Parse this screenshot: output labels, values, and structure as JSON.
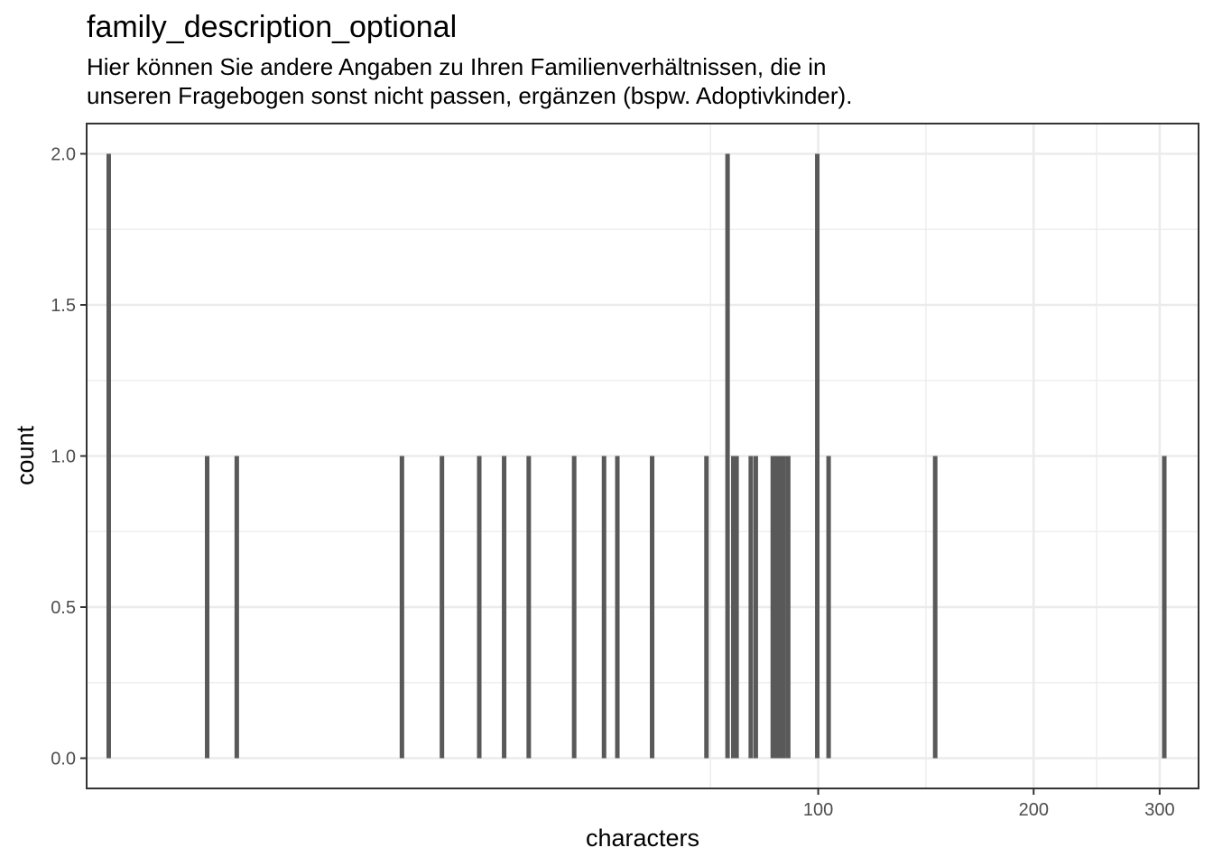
{
  "chart_data": {
    "type": "bar",
    "title": "family_description_optional",
    "subtitle": [
      "Hier können Sie andere Angaben zu Ihren Familienverhältnissen, die in",
      "unseren Fragebogen sonst nicht passen, ergänzen (bspw. Adoptivkinder)."
    ],
    "xlabel": "characters",
    "ylabel": "count",
    "x_scale": "log10",
    "x_range": [
      9.5,
      340
    ],
    "ylim": [
      -0.1,
      2.1
    ],
    "x_ticks": [
      {
        "value": 100,
        "label": "100"
      },
      {
        "value": 200,
        "label": "200"
      },
      {
        "value": 300,
        "label": "300"
      }
    ],
    "y_ticks": [
      {
        "value": 0,
        "label": "0.0"
      },
      {
        "value": 0.5,
        "label": "0.5"
      },
      {
        "value": 1,
        "label": "1.0"
      },
      {
        "value": 1.5,
        "label": "1.5"
      },
      {
        "value": 2,
        "label": "2.0"
      }
    ],
    "grid": true,
    "bar_color": "#595959",
    "points": [
      {
        "x": 10.2,
        "count": 2
      },
      {
        "x": 14.0,
        "count": 1
      },
      {
        "x": 15.4,
        "count": 1
      },
      {
        "x": 26.2,
        "count": 1
      },
      {
        "x": 29.8,
        "count": 1
      },
      {
        "x": 33.6,
        "count": 1
      },
      {
        "x": 36.4,
        "count": 1
      },
      {
        "x": 39.4,
        "count": 1
      },
      {
        "x": 45.6,
        "count": 1
      },
      {
        "x": 50.2,
        "count": 1
      },
      {
        "x": 52.4,
        "count": 1
      },
      {
        "x": 58.6,
        "count": 1
      },
      {
        "x": 69.8,
        "count": 1
      },
      {
        "x": 74.7,
        "count": 2
      },
      {
        "x": 76.1,
        "count": 1
      },
      {
        "x": 76.9,
        "count": 1
      },
      {
        "x": 80.5,
        "count": 1
      },
      {
        "x": 81.8,
        "count": 1
      },
      {
        "x": 86.4,
        "count": 1
      },
      {
        "x": 87.3,
        "count": 1
      },
      {
        "x": 88.4,
        "count": 1
      },
      {
        "x": 89.5,
        "count": 1
      },
      {
        "x": 90.8,
        "count": 1
      },
      {
        "x": 99.7,
        "count": 2
      },
      {
        "x": 103.4,
        "count": 1
      },
      {
        "x": 145.7,
        "count": 1
      },
      {
        "x": 304.5,
        "count": 1
      }
    ]
  }
}
